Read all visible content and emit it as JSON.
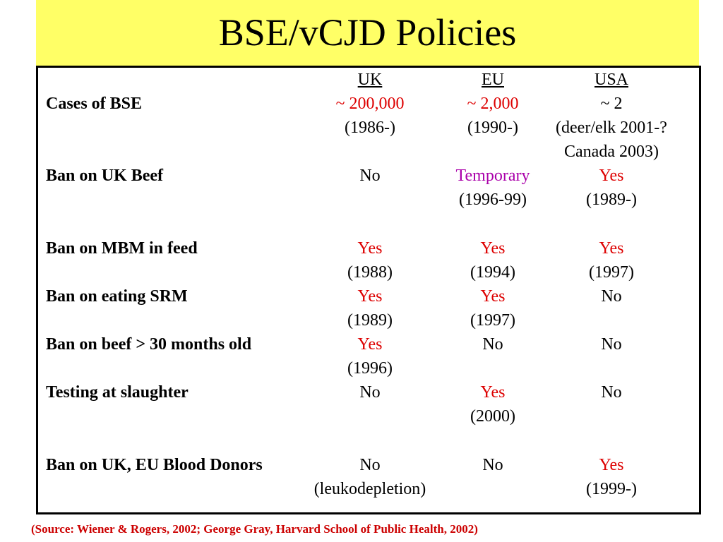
{
  "slide": {
    "title": "BSE/vCJD Policies",
    "title_band_color": "#ffff66",
    "source": "(Source:  Wiener & Rogers, 2002; George Gray, Harvard School of Public Health, 2002)",
    "source_color": "#cc0000"
  },
  "colors": {
    "black": "#000000",
    "red": "#dd0000",
    "magenta": "#aa00aa"
  },
  "table": {
    "headers": {
      "uk": "UK",
      "eu": "EU",
      "usa": "USA"
    },
    "rows": [
      {
        "label": "Cases of BSE",
        "uk": {
          "value": "~ 200,000",
          "note": "(1986-)",
          "color": "red"
        },
        "eu": {
          "value": "~ 2,000",
          "note": "(1990-)",
          "color": "red"
        },
        "usa": {
          "value": "~ 2",
          "note": "(deer/elk 2001-?",
          "note2": "Canada 2003)",
          "color": "black"
        }
      },
      {
        "label": "Ban on UK Beef",
        "uk": {
          "value": "No",
          "note": "",
          "color": "black"
        },
        "eu": {
          "value": "Temporary",
          "note": "(1996-99)",
          "color": "magenta"
        },
        "usa": {
          "value": "Yes",
          "note": "(1989-)",
          "color": "red"
        }
      },
      {
        "label": "Ban on MBM in feed",
        "uk": {
          "value": "Yes",
          "note": "(1988)",
          "color": "red"
        },
        "eu": {
          "value": "Yes",
          "note": "(1994)",
          "color": "red"
        },
        "usa": {
          "value": "Yes",
          "note": "(1997)",
          "color": "red"
        }
      },
      {
        "label": "Ban on eating SRM",
        "uk": {
          "value": "Yes",
          "note": "(1989)",
          "color": "red"
        },
        "eu": {
          "value": "Yes",
          "note": "(1997)",
          "color": "red"
        },
        "usa": {
          "value": "No",
          "note": "",
          "color": "black"
        }
      },
      {
        "label": "Ban on beef > 30 months old",
        "uk": {
          "value": "Yes",
          "note": "(1996)",
          "color": "red"
        },
        "eu": {
          "value": "No",
          "note": "",
          "color": "black"
        },
        "usa": {
          "value": "No",
          "note": "",
          "color": "black"
        }
      },
      {
        "label": "Testing at slaughter",
        "uk": {
          "value": "No",
          "note": "",
          "color": "black"
        },
        "eu": {
          "value": "Yes",
          "note": "(2000)",
          "color": "red"
        },
        "usa": {
          "value": "No",
          "note": "",
          "color": "black"
        }
      },
      {
        "label": "Ban on UK, EU Blood Donors",
        "uk": {
          "value": "No",
          "note": "(leukodepletion)",
          "color": "black"
        },
        "eu": {
          "value": "No",
          "note": "",
          "color": "black"
        },
        "usa": {
          "value": "Yes",
          "note": "(1999-)",
          "color": "red"
        }
      }
    ]
  }
}
